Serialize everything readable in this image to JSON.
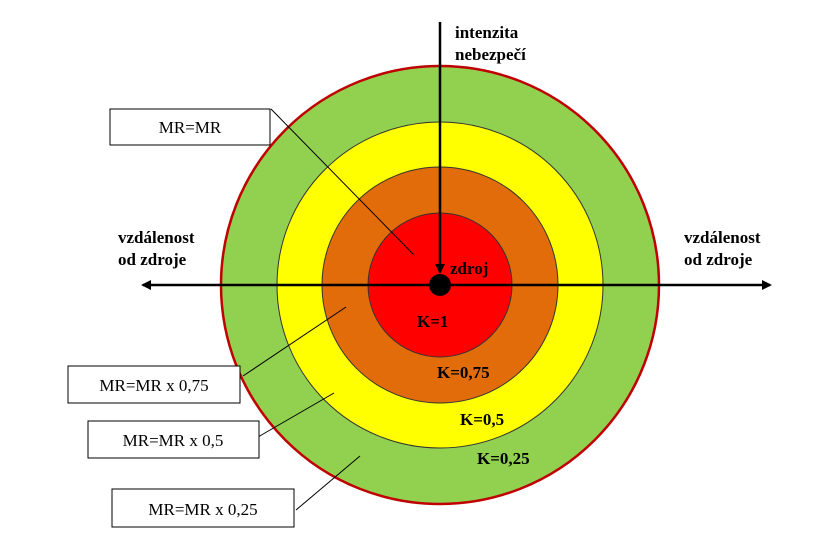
{
  "axis": {
    "vertical_label_line1": "intenzita",
    "vertical_label_line2": "nebezpečí",
    "left_label_line1": "vzdálenost",
    "left_label_line2": "od zdroje",
    "right_label_line1": "vzdálenost",
    "right_label_line2": "od zdroje"
  },
  "source_label": "zdroj",
  "zones": [
    {
      "k_label": "K=1",
      "color": "#ff0000"
    },
    {
      "k_label": "K=0,75",
      "color": "#e36c0a"
    },
    {
      "k_label": "K=0,5",
      "color": "#ffff00"
    },
    {
      "k_label": "K=0,25",
      "color": "#92d050"
    }
  ],
  "outline_color": "#c00000",
  "callouts": [
    {
      "text": "MR=MR"
    },
    {
      "text": "MR=MR x 0,75"
    },
    {
      "text": "MR=MR x 0,5"
    },
    {
      "text": "MR=MR x 0,25"
    }
  ]
}
